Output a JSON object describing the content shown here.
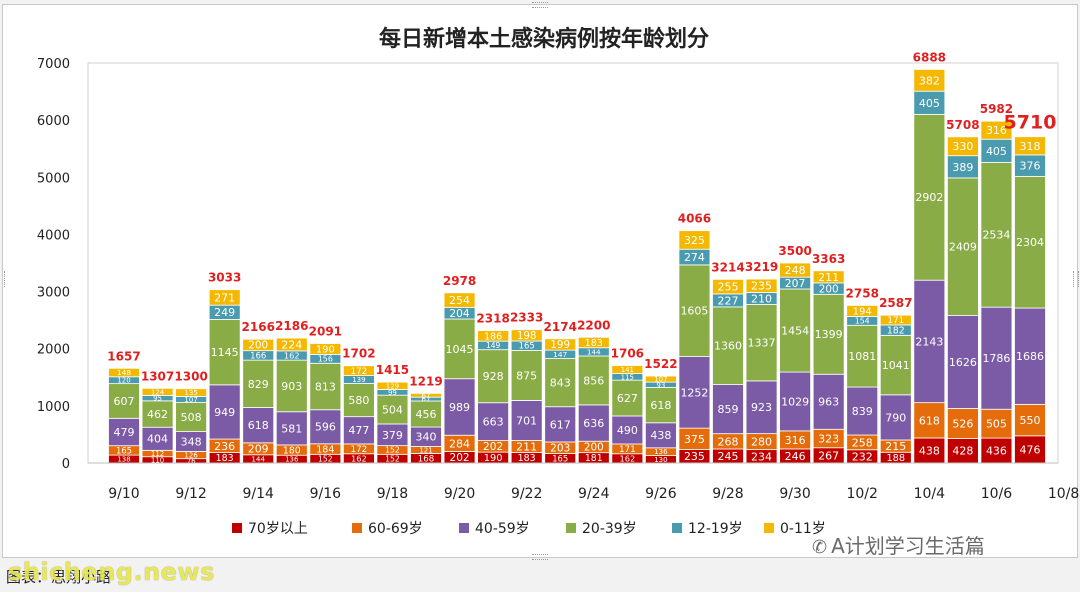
{
  "chart_data": {
    "type": "bar",
    "stacked": true,
    "title": "每日新增本土感染病例按年龄划分",
    "categories": [
      "9/10",
      "9/11",
      "9/12",
      "9/13",
      "9/14",
      "9/15",
      "9/16",
      "9/17",
      "9/18",
      "9/19",
      "9/20",
      "9/21",
      "9/22",
      "9/23",
      "9/24",
      "9/25",
      "9/26",
      "9/27",
      "9/28",
      "9/29",
      "9/30",
      "10/1",
      "10/2",
      "10/3",
      "10/4",
      "10/5",
      "10/6",
      "10/7"
    ],
    "x_tick_labels": [
      "9/10",
      "9/12",
      "9/14",
      "9/16",
      "9/18",
      "9/20",
      "9/22",
      "9/24",
      "9/26",
      "9/28",
      "9/30",
      "10/2",
      "10/4",
      "10/6",
      "10/8"
    ],
    "ylim": [
      0,
      7000
    ],
    "yticks": [
      0,
      1000,
      2000,
      3000,
      4000,
      5000,
      6000,
      7000
    ],
    "legend_position": "bottom",
    "series": [
      {
        "name": "70岁以上",
        "color": "#c00000",
        "values": [
          138,
          110,
          76,
          183,
          144,
          136,
          152,
          162,
          152,
          168,
          202,
          190,
          183,
          165,
          181,
          162,
          130,
          235,
          245,
          234,
          246,
          267,
          232,
          188,
          438,
          428,
          436,
          476
        ]
      },
      {
        "name": "60-69岁",
        "color": "#e46c0a",
        "values": [
          165,
          112,
          126,
          236,
          209,
          180,
          184,
          172,
          152,
          121,
          284,
          202,
          211,
          203,
          200,
          171,
          136,
          375,
          268,
          280,
          316,
          323,
          258,
          215,
          618,
          526,
          505,
          550
        ]
      },
      {
        "name": "40-59岁",
        "color": "#7b5ba6",
        "values": [
          479,
          404,
          348,
          949,
          618,
          581,
          596,
          477,
          379,
          340,
          989,
          663,
          701,
          617,
          636,
          490,
          438,
          1252,
          859,
          923,
          1029,
          963,
          839,
          790,
          2143,
          1626,
          1786,
          1686
        ]
      },
      {
        "name": "20-39岁",
        "color": "#8aac46",
        "values": [
          607,
          462,
          508,
          1145,
          829,
          903,
          813,
          580,
          504,
          456,
          1045,
          928,
          875,
          843,
          856,
          627,
          618,
          1605,
          1360,
          1337,
          1454,
          1399,
          1081,
          1041,
          2902,
          2409,
          2534,
          2304
        ]
      },
      {
        "name": "12-19岁",
        "color": "#4a9bb0",
        "values": [
          120,
          95,
          107,
          249,
          166,
          162,
          156,
          139,
          99,
          67,
          204,
          149,
          165,
          147,
          144,
          115,
          93,
          274,
          227,
          210,
          207,
          200,
          154,
          182,
          405,
          389,
          405,
          376
        ]
      },
      {
        "name": "0-11岁",
        "color": "#f5b800",
        "values": [
          148,
          124,
          135,
          271,
          200,
          224,
          190,
          172,
          129,
          67,
          254,
          186,
          198,
          199,
          183,
          141,
          107,
          325,
          255,
          235,
          248,
          211,
          194,
          171,
          382,
          330,
          316,
          318
        ]
      }
    ],
    "totals": [
      1657,
      1307,
      1300,
      3033,
      2166,
      2186,
      2091,
      1702,
      1415,
      1219,
      2978,
      2318,
      2333,
      2174,
      2200,
      1706,
      1522,
      4066,
      3214,
      3219,
      3500,
      3363,
      2758,
      2587,
      6888,
      5708,
      5982,
      5710
    ],
    "highlight_total_index": 27
  },
  "footer": {
    "caption": "图表：思翔小路",
    "watermark_site": "shicheng.news",
    "watermark_account": "A计划学习生活篇"
  },
  "icons": {
    "account": "wechat-icon"
  }
}
